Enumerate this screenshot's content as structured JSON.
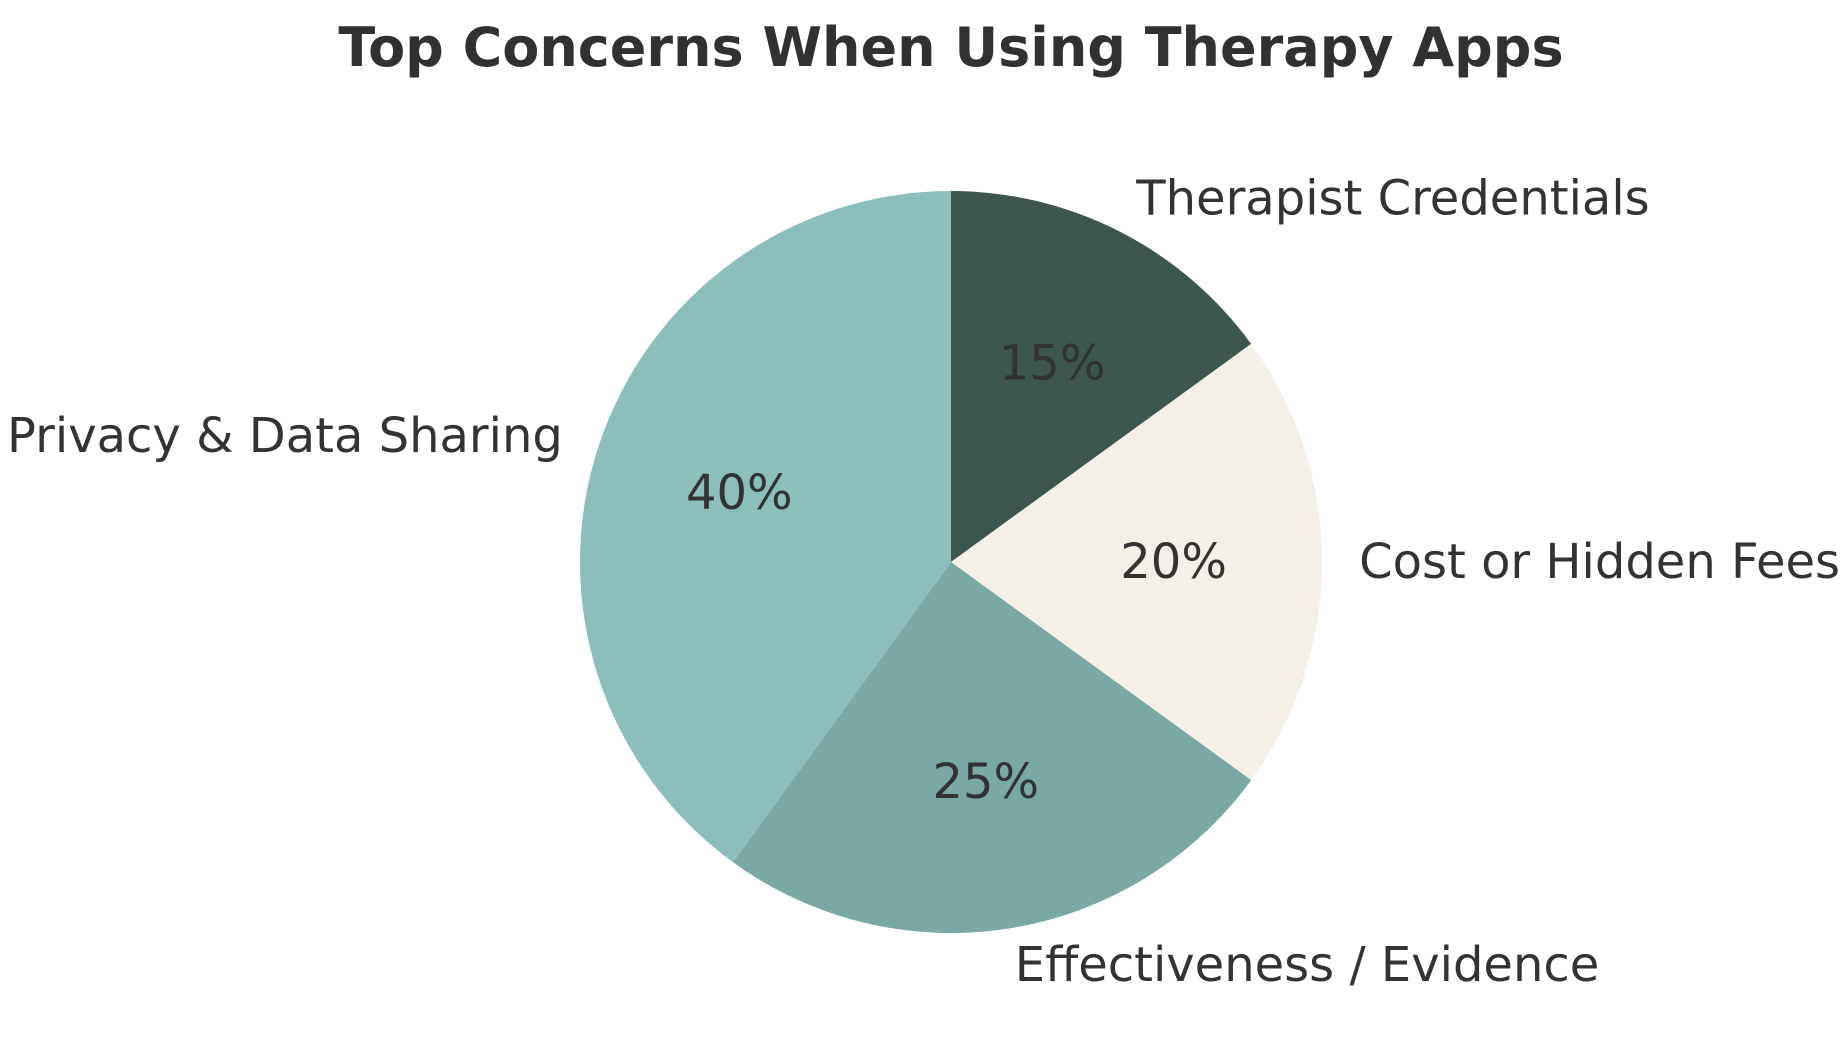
{
  "title": "Top Concerns When Using Therapy Apps",
  "chart_data": {
    "type": "pie",
    "title": "Top Concerns When Using Therapy Apps",
    "labels": [
      "Therapist Credentials",
      "Cost or Hidden Fees",
      "Effectiveness / Evidence",
      "Privacy & Data Sharing"
    ],
    "values": [
      15,
      20,
      25,
      40
    ],
    "pct_labels": [
      "15%",
      "20%",
      "25%",
      "40%"
    ],
    "colors": [
      "#3E5650",
      "#F4EFE7",
      "#7AA8A5",
      "#8CBEBB"
    ],
    "start_angle": 90,
    "counterclock": false,
    "pct_distance": 0.6,
    "label_distance": 1.1,
    "text_color": "#333333",
    "legend": "none",
    "background": "#ffffff"
  }
}
